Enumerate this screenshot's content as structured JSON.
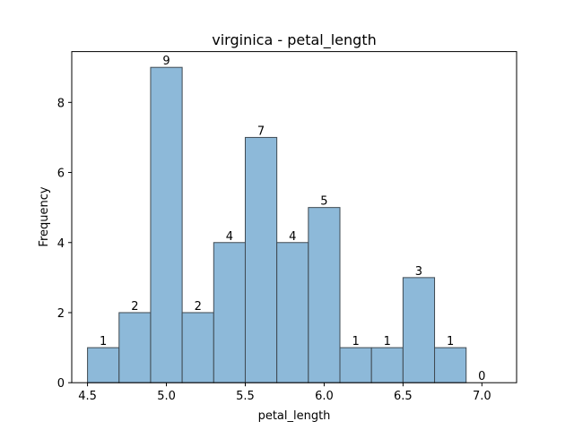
{
  "chart_data": {
    "type": "bar",
    "title": "virginica - petal_length",
    "xlabel": "petal_length",
    "ylabel": "Frequency",
    "bin_edges": [
      4.5,
      4.7,
      4.9,
      5.1,
      5.3,
      5.5,
      5.7,
      5.9,
      6.1,
      6.3,
      6.5,
      6.7,
      6.9,
      7.1
    ],
    "values": [
      1,
      2,
      9,
      2,
      4,
      7,
      4,
      5,
      1,
      1,
      3,
      1,
      0
    ],
    "xlim": [
      4.4,
      7.22
    ],
    "ylim": [
      0,
      9.45
    ],
    "xticks": [
      4.5,
      5.0,
      5.5,
      6.0,
      6.5,
      7.0
    ],
    "xtick_labels": [
      "4.5",
      "5.0",
      "5.5",
      "6.0",
      "6.5",
      "7.0"
    ],
    "yticks": [
      0,
      2,
      4,
      6,
      8
    ],
    "ytick_labels": [
      "0",
      "2",
      "4",
      "6",
      "8"
    ],
    "bar_color": "#8db9d9",
    "bar_edge_color": "#3f4a52",
    "grid": false,
    "legend": "none"
  }
}
